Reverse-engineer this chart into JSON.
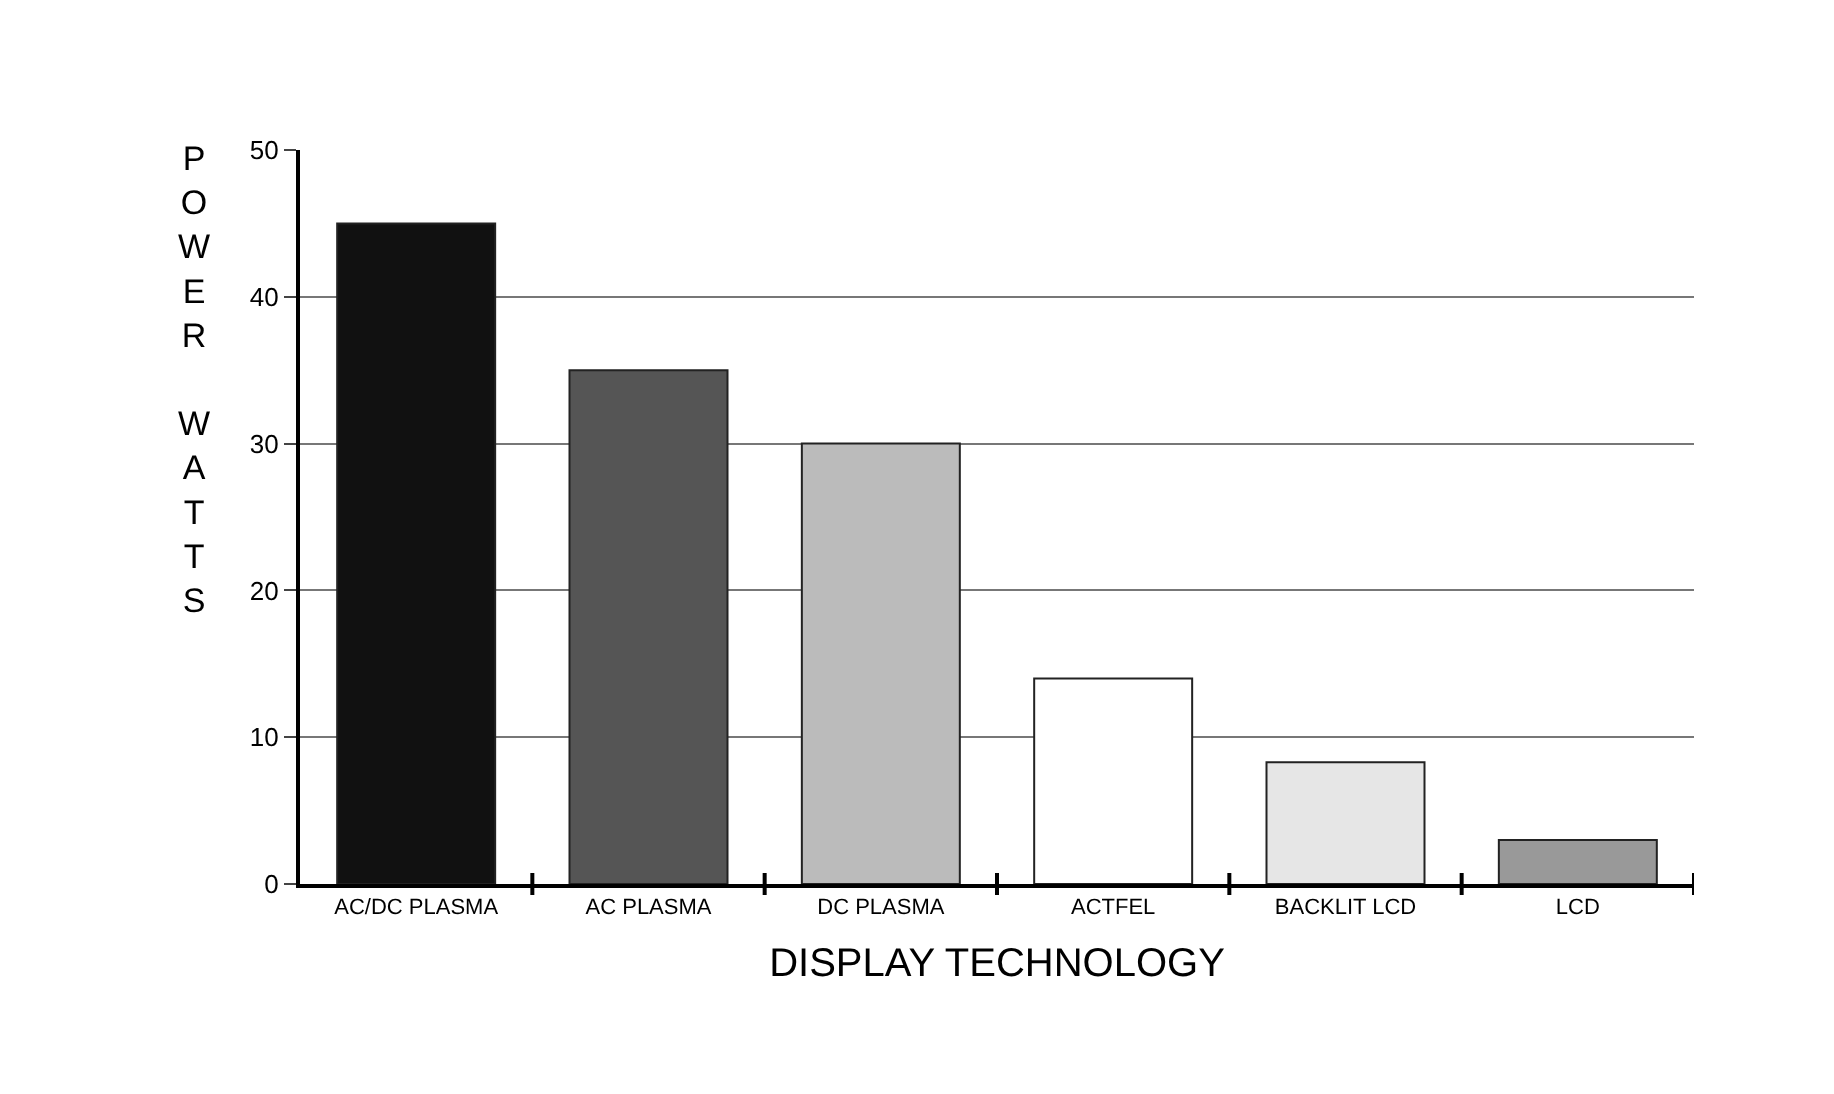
{
  "chart_data": {
    "type": "bar",
    "xlabel": "DISPLAY TECHNOLOGY",
    "ylabel": "POWER WATTS",
    "categories": [
      "AC/DC PLASMA",
      "AC PLASMA",
      "DC PLASMA",
      "ACTFEL",
      "BACKLIT LCD",
      "LCD"
    ],
    "values": [
      45,
      35,
      30,
      14,
      8.3,
      3
    ],
    "colors": [
      "#111111",
      "#555555",
      "#bbbbbb",
      "#ffffff",
      "#e6e6e6",
      "#999999"
    ],
    "ylim": [
      0,
      50
    ],
    "yticks": [
      0,
      10,
      20,
      30,
      40,
      50
    ],
    "grid": "y",
    "legend": false
  }
}
